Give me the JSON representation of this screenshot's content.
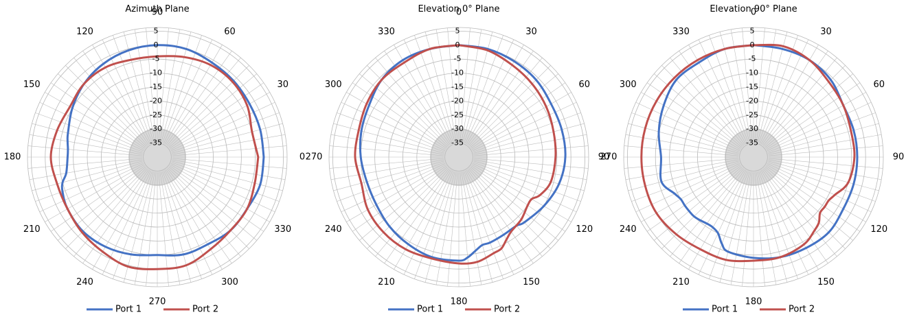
{
  "chart_data": [
    {
      "type": "polar-line",
      "title": "Azimuth Plane",
      "angle_labels": [
        {
          "text": "90",
          "angle": 90
        },
        {
          "text": "60",
          "angle": 60
        },
        {
          "text": "30",
          "angle": 30
        },
        {
          "text": "0",
          "angle": 0
        },
        {
          "text": "330",
          "angle": 330
        },
        {
          "text": "300",
          "angle": 300
        },
        {
          "text": "270",
          "angle": 270
        },
        {
          "text": "240",
          "angle": 240
        },
        {
          "text": "210",
          "angle": 210
        },
        {
          "text": "180",
          "angle": 180
        },
        {
          "text": "150",
          "angle": 150
        },
        {
          "text": "120",
          "angle": 120
        }
      ],
      "radial_ticks": [
        "5",
        "0",
        "-5",
        "-10",
        "-15",
        "-20",
        "-25",
        "-30",
        "-35"
      ],
      "rlim": [
        -40,
        5
      ],
      "zero_angle": "right",
      "direction": "counterclockwise",
      "series": [
        {
          "name": "Port 1",
          "color": "#4472C4",
          "angles": [
            0,
            15,
            30,
            45,
            60,
            75,
            90,
            105,
            120,
            135,
            150,
            165,
            170,
            175,
            180,
            190,
            195,
            200,
            210,
            225,
            240,
            255,
            270,
            285,
            300,
            315,
            330,
            345,
            360
          ],
          "values": [
            -2,
            -2,
            -2,
            -1.5,
            -1,
            0,
            0,
            -0.5,
            -1.5,
            -3,
            -5,
            -7,
            -7.5,
            -8,
            -8,
            -7,
            -5,
            -4,
            -3,
            -2.5,
            -3,
            -4,
            -5,
            -4,
            -4,
            -3,
            -3,
            -2,
            -2
          ]
        },
        {
          "name": "Port 2",
          "color": "#C0504D",
          "angles": [
            0,
            15,
            30,
            45,
            60,
            75,
            90,
            105,
            120,
            135,
            150,
            165,
            180,
            195,
            210,
            225,
            240,
            255,
            270,
            285,
            300,
            315,
            330,
            345,
            360
          ],
          "values": [
            -4,
            -5,
            -3,
            -2,
            -2,
            -3,
            -4,
            -4,
            -3,
            -3,
            -4,
            -3,
            -2,
            -3,
            -3,
            -2,
            -1,
            0.5,
            0,
            0,
            -2,
            -3,
            -3,
            -4,
            -4
          ]
        }
      ],
      "legend": [
        "Port 1",
        "Port 2"
      ],
      "legend_position": "bottom"
    },
    {
      "type": "polar-line",
      "title": "Elevation 0° Plane",
      "angle_labels": [
        {
          "text": "0",
          "angle": 0
        },
        {
          "text": "30",
          "angle": 30
        },
        {
          "text": "60",
          "angle": 60
        },
        {
          "text": "90",
          "angle": 90
        },
        {
          "text": "120",
          "angle": 120
        },
        {
          "text": "150",
          "angle": 150
        },
        {
          "text": "180",
          "angle": 180
        },
        {
          "text": "210",
          "angle": 210
        },
        {
          "text": "240",
          "angle": 240
        },
        {
          "text": "270",
          "angle": 270
        },
        {
          "text": "300",
          "angle": 300
        },
        {
          "text": "330",
          "angle": 330
        }
      ],
      "radial_ticks": [
        "5",
        "0",
        "-5",
        "-10",
        "-15",
        "-20",
        "-25",
        "-30",
        "-35"
      ],
      "rlim": [
        -40,
        5
      ],
      "zero_angle": "top",
      "direction": "clockwise",
      "series": [
        {
          "name": "Port 1",
          "color": "#4472C4",
          "angles": [
            0,
            15,
            30,
            45,
            60,
            75,
            90,
            105,
            120,
            135,
            140,
            150,
            160,
            165,
            170,
            175,
            180,
            195,
            210,
            225,
            240,
            255,
            270,
            285,
            300,
            315,
            330,
            345,
            360
          ],
          "values": [
            0,
            0,
            -0.5,
            -1,
            -2,
            -2,
            -2,
            -3,
            -5,
            -7,
            -8,
            -8,
            -7.5,
            -7.5,
            -6,
            -4,
            -3,
            -3,
            -4,
            -5,
            -6,
            -6,
            -5,
            -4,
            -3,
            -1,
            0,
            0,
            0
          ]
        },
        {
          "name": "Port 2",
          "color": "#C0504D",
          "angles": [
            0,
            15,
            30,
            45,
            60,
            75,
            90,
            105,
            115,
            120,
            125,
            135,
            145,
            150,
            155,
            160,
            170,
            180,
            195,
            210,
            225,
            240,
            255,
            270,
            285,
            300,
            315,
            330,
            345,
            360
          ],
          "values": [
            0,
            -0.5,
            -2,
            -3,
            -4,
            -5,
            -5.5,
            -6,
            -8,
            -10,
            -10,
            -8.5,
            -7.5,
            -6,
            -4,
            -3.5,
            -2,
            -2,
            -2.5,
            -2,
            -2,
            -2.5,
            -4,
            -3,
            -3,
            -2,
            -1,
            -1,
            0,
            0
          ]
        }
      ],
      "legend": [
        "Port 1",
        "Port 2"
      ],
      "legend_position": "bottom"
    },
    {
      "type": "polar-line",
      "title": "Elevation 90° Plane",
      "angle_labels": [
        {
          "text": "0",
          "angle": 0
        },
        {
          "text": "30",
          "angle": 30
        },
        {
          "text": "60",
          "angle": 60
        },
        {
          "text": "90",
          "angle": 90
        },
        {
          "text": "120",
          "angle": 120
        },
        {
          "text": "150",
          "angle": 150
        },
        {
          "text": "180",
          "angle": 180
        },
        {
          "text": "210",
          "angle": 210
        },
        {
          "text": "240",
          "angle": 240
        },
        {
          "text": "270",
          "angle": 270
        },
        {
          "text": "300",
          "angle": 300
        },
        {
          "text": "330",
          "angle": 330
        }
      ],
      "radial_ticks": [
        "5",
        "0",
        "-5",
        "-10",
        "-15",
        "-20",
        "-25",
        "-30",
        "-35"
      ],
      "rlim": [
        -40,
        5
      ],
      "zero_angle": "top",
      "direction": "clockwise",
      "series": [
        {
          "name": "Port 1",
          "color": "#4472C4",
          "angles": [
            0,
            15,
            30,
            45,
            60,
            75,
            90,
            105,
            120,
            135,
            150,
            165,
            180,
            195,
            200,
            205,
            210,
            215,
            220,
            225,
            230,
            235,
            240,
            245,
            255,
            270,
            285,
            300,
            315,
            330,
            345,
            360
          ],
          "values": [
            0,
            0,
            0,
            -1,
            -3,
            -3,
            -3,
            -3,
            -3,
            -2,
            -2.5,
            -3,
            -4,
            -5,
            -7,
            -10,
            -11,
            -11,
            -10.5,
            -10,
            -10,
            -10,
            -10,
            -9,
            -6,
            -7,
            -5,
            -3,
            -1,
            -1,
            0,
            0
          ]
        },
        {
          "name": "Port 2",
          "color": "#C0504D",
          "angles": [
            0,
            15,
            30,
            45,
            60,
            75,
            90,
            105,
            115,
            120,
            125,
            130,
            135,
            140,
            150,
            165,
            180,
            195,
            210,
            225,
            240,
            255,
            270,
            285,
            300,
            315,
            330,
            345,
            360
          ],
          "values": [
            0,
            1,
            0,
            -2,
            -3,
            -4,
            -4,
            -5,
            -8,
            -9,
            -9,
            -9,
            -7,
            -6,
            -4,
            -3,
            -3,
            -2,
            -2,
            -1,
            0,
            0,
            0,
            0,
            0,
            0,
            0,
            0,
            0
          ]
        }
      ],
      "legend": [
        "Port 1",
        "Port 2"
      ],
      "legend_position": "bottom"
    }
  ]
}
